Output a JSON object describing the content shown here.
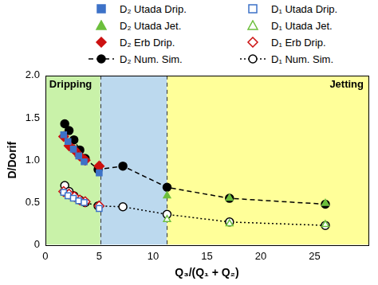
{
  "chart_data": {
    "type": "scatter",
    "x_label": "Q₃/(Q₁ + Q₂)",
    "y_label": "D/Dorif",
    "xlim": [
      0,
      30
    ],
    "xticks": [
      0,
      5,
      10,
      15,
      20,
      25
    ],
    "ylim": [
      0,
      2
    ],
    "yticks": [
      0,
      0.5,
      {
        "value": 1,
        "label": "1.0"
      },
      1.5,
      {
        "value": 2,
        "label": "2.0"
      }
    ],
    "grid": false,
    "legend": "top",
    "regions": [
      {
        "label": "Dripping",
        "xmin": 0,
        "xmax": 5.1,
        "color": "#c9f2a9"
      },
      {
        "xmin": 5.1,
        "xmax": 11.3,
        "color": "#bcd9ee"
      },
      {
        "label": "Jetting",
        "xmin": 11.3,
        "xmax": 30,
        "color": "#ffff99"
      }
    ],
    "series": [
      {
        "name": "D₂ Utada Drip.",
        "color": "#3d72c8",
        "marker": "square",
        "line_style": "none",
        "x": [
          1.7,
          2.1,
          2.6,
          3.1,
          3.6,
          5.0
        ],
        "values": [
          1.3,
          1.22,
          1.13,
          1.05,
          0.98,
          0.85
        ]
      },
      {
        "name": "D₁ Utada Drip.",
        "color": "#3d72c8",
        "marker": "open-square",
        "line_style": "none",
        "x": [
          1.7,
          2.1,
          2.6,
          3.1,
          3.6,
          5.0
        ],
        "values": [
          0.62,
          0.58,
          0.55,
          0.52,
          0.5,
          0.43
        ]
      },
      {
        "name": "D₂ Utada Jet.",
        "color": "#6cbf3c",
        "marker": "triangle",
        "line_style": "none",
        "x": [
          11.3,
          17.1,
          26
        ],
        "values": [
          0.58,
          0.55,
          0.49
        ]
      },
      {
        "name": "D₁ Utada Jet.",
        "color": "#6cbf3c",
        "marker": "open-triangle",
        "line_style": "none",
        "x": [
          11.3,
          17.1,
          26
        ],
        "values": [
          0.3,
          0.25,
          0.24
        ]
      },
      {
        "name": "D₂ Erb Drip.",
        "color": "#cc1111",
        "marker": "diamond",
        "line_style": "none",
        "x": [
          1.7,
          2.2,
          2.7,
          3.2,
          3.7,
          5.0
        ],
        "values": [
          1.28,
          1.17,
          1.12,
          1.05,
          1.0,
          0.93
        ]
      },
      {
        "name": "D₁ Erb Drip.",
        "color": "#cc1111",
        "marker": "open-diamond",
        "line_style": "none",
        "x": [
          1.7,
          2.2,
          2.7,
          3.2,
          3.7,
          5.0
        ],
        "values": [
          0.63,
          0.6,
          0.57,
          0.53,
          0.51,
          0.46
        ]
      },
      {
        "name": "D₂ Num. Sim.",
        "color": "#000000",
        "marker": "circle",
        "line_style": "dashed",
        "x": [
          1.8,
          2.2,
          2.65,
          3.2,
          3.7,
          4.9,
          7.2,
          11.3,
          17.1,
          26
        ],
        "values": [
          1.43,
          1.35,
          1.24,
          1.12,
          1.02,
          0.89,
          0.93,
          0.68,
          0.55,
          0.48
        ]
      },
      {
        "name": "D₁ Num. Sim.",
        "color": "#000000",
        "marker": "open-circle",
        "line_style": "dotted",
        "x": [
          1.8,
          2.2,
          2.65,
          3.2,
          3.7,
          4.9,
          7.2,
          11.3,
          17.1,
          26
        ],
        "values": [
          0.7,
          0.63,
          0.58,
          0.53,
          0.5,
          0.46,
          0.45,
          0.36,
          0.27,
          0.23
        ]
      }
    ]
  }
}
